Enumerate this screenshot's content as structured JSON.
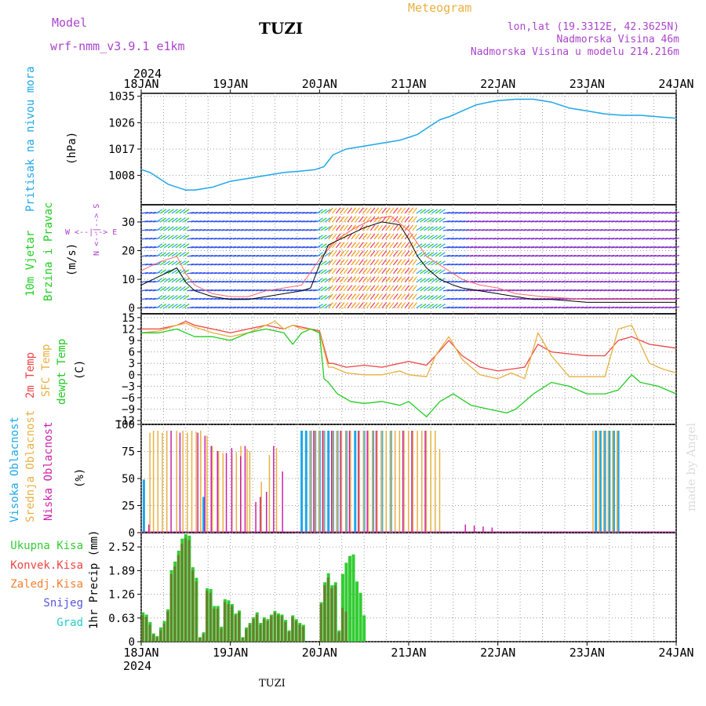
{
  "header": {
    "model_label": "Model",
    "model_name": "wrf-nmm_v3.9.1 e1km",
    "station": "TUZI",
    "product": "Meteogram",
    "lonlat": "lon,lat (19.3312E, 42.3625N)",
    "altitude": "Nadmorska Visina 46m",
    "model_altitude": "Nadmorska Visina u modelu 214.216m",
    "footer_station": "TUZI",
    "watermark": "made by Angel",
    "year_top": "2024",
    "year_bottom": "2024"
  },
  "colors": {
    "pressure": "#1ea7e8",
    "t2m": "#ee4444",
    "tsfc": "#e8b040",
    "dewpt": "#22cc22",
    "cloud_high": "#1ea7e8",
    "cloud_mid": "#e8b040",
    "cloud_low": "#cc22aa",
    "precip_total": "#33cc33",
    "precip_conv": "#cc4444",
    "snow": "#5555dd",
    "hail": "#22cccc",
    "wind_line": "#000000",
    "gust": "#ff6666"
  },
  "chart_data": [
    {
      "type": "line",
      "id": "pressure",
      "x_ticks": [
        "18JAN",
        "19JAN",
        "20JAN",
        "21JAN",
        "22JAN",
        "23JAN",
        "24JAN"
      ],
      "ylabel_lines": [
        "Pritisak na nivou mora",
        "(hPa)"
      ],
      "yticks": [
        "1035",
        "1026",
        "1017",
        "1008"
      ],
      "ylim": [
        998,
        1036
      ],
      "series": [
        {
          "name": "Pritisak na nivou mora",
          "x": [
            0,
            0.1,
            0.3,
            0.5,
            0.6,
            0.8,
            1.0,
            1.2,
            1.4,
            1.6,
            1.8,
            1.95,
            2.05,
            2.15,
            2.3,
            2.5,
            2.7,
            2.9,
            3.0,
            3.1,
            3.2,
            3.35,
            3.45,
            3.6,
            3.75,
            3.9,
            4.0,
            4.2,
            4.4,
            4.6,
            4.8,
            5.0,
            5.2,
            5.4,
            5.6,
            5.8,
            6.0
          ],
          "values": [
            1010,
            1009,
            1005,
            1003,
            1003,
            1004,
            1006,
            1007,
            1008,
            1009,
            1009.5,
            1010,
            1011,
            1015,
            1017,
            1018,
            1019,
            1020,
            1021,
            1022,
            1024,
            1027,
            1028,
            1030,
            1032,
            1033,
            1033.5,
            1034,
            1034,
            1033,
            1031,
            1030,
            1029,
            1028.5,
            1028.5,
            1028,
            1027.5
          ]
        }
      ]
    },
    {
      "type": "line",
      "id": "wind",
      "ylabel_lines": [
        "10m Vjetar",
        "Brzina i Pravac",
        "(m/s)"
      ],
      "compass": "W <--|--> E",
      "compass_ns": "N <--|--> S",
      "yticks": [
        "30",
        "20",
        "10",
        "0"
      ],
      "ylim": [
        -2,
        36
      ],
      "series": [
        {
          "name": "wind_speed",
          "x": [
            0,
            0.2,
            0.4,
            0.5,
            0.6,
            0.8,
            1.0,
            1.2,
            1.4,
            1.6,
            1.8,
            1.9,
            2.0,
            2.1,
            2.3,
            2.5,
            2.7,
            2.9,
            3.0,
            3.1,
            3.2,
            3.35,
            3.5,
            3.6,
            3.8,
            4.0,
            4.2,
            4.4,
            4.6,
            4.8,
            5.0,
            5.2,
            5.4,
            5.6,
            5.8,
            6.0
          ],
          "values": [
            8,
            11,
            14,
            9,
            6,
            4,
            3,
            3,
            4,
            5,
            6,
            7,
            15,
            22,
            25,
            28,
            30,
            29,
            24,
            18,
            14,
            10,
            8,
            7,
            6,
            5,
            4,
            3,
            3,
            2.5,
            2,
            2,
            2,
            2,
            2,
            2
          ]
        },
        {
          "name": "gust",
          "x": [
            0,
            0.2,
            0.4,
            0.5,
            0.6,
            0.8,
            1.0,
            1.2,
            1.4,
            1.6,
            1.8,
            2.0,
            2.2,
            2.4,
            2.6,
            2.8,
            3.0,
            3.2,
            3.4,
            3.6,
            3.8,
            4.0,
            4.2,
            4.5,
            5.0,
            5.5,
            6.0
          ],
          "values": [
            13,
            16,
            18,
            12,
            8,
            5,
            4,
            4,
            6,
            7,
            8,
            17,
            24,
            28,
            31,
            32,
            27,
            18,
            14,
            10,
            8,
            7,
            5,
            4,
            3,
            3,
            3
          ]
        }
      ]
    },
    {
      "type": "line",
      "id": "temperature",
      "ylabel_lines": [
        "2m Temp",
        "SFC Temp",
        "dewpt Temp",
        "(C)"
      ],
      "yticks": [
        "15",
        "12",
        "9",
        "6",
        "3",
        "0",
        "−3",
        "−6",
        "−9",
        "−12"
      ],
      "ylim": [
        -13,
        16
      ],
      "series": [
        {
          "name": "2m Temp",
          "x": [
            0,
            0.2,
            0.4,
            0.5,
            0.6,
            0.8,
            1.0,
            1.2,
            1.4,
            1.6,
            1.7,
            1.8,
            1.9,
            2.0,
            2.1,
            2.15,
            2.3,
            2.5,
            2.7,
            2.9,
            3.0,
            3.2,
            3.3,
            3.45,
            3.6,
            3.8,
            4.0,
            4.15,
            4.3,
            4.45,
            4.6,
            4.8,
            5.0,
            5.2,
            5.35,
            5.5,
            5.7,
            5.85,
            6.0
          ],
          "values": [
            12,
            12,
            13,
            14,
            13,
            12,
            11,
            12,
            13,
            12,
            13,
            12.5,
            12,
            11.5,
            3,
            3,
            2,
            2.5,
            2,
            3,
            3.5,
            2.5,
            5,
            9,
            5,
            2,
            1,
            1.5,
            2,
            8,
            6,
            5.5,
            5,
            5,
            9,
            10,
            8,
            7.5,
            7
          ]
        },
        {
          "name": "SFC Temp",
          "x": [
            0,
            0.2,
            0.4,
            0.5,
            0.6,
            0.8,
            1.0,
            1.2,
            1.4,
            1.5,
            1.6,
            1.7,
            1.8,
            1.9,
            2.0,
            2.1,
            2.15,
            2.3,
            2.5,
            2.7,
            2.9,
            3.0,
            3.2,
            3.3,
            3.45,
            3.6,
            3.8,
            4.0,
            4.15,
            4.3,
            4.45,
            4.6,
            4.8,
            5.0,
            5.2,
            5.35,
            5.5,
            5.7,
            5.85,
            6.0
          ],
          "values": [
            11,
            11.5,
            13,
            13.5,
            12.5,
            11,
            10,
            11,
            13,
            14,
            12,
            13,
            12,
            12,
            11,
            2,
            2,
            0.5,
            0,
            0,
            1,
            0,
            -0.5,
            5,
            10,
            4,
            0,
            -1,
            0.5,
            -1,
            11,
            5,
            -0.5,
            -0.5,
            -0.5,
            12,
            13,
            3,
            1.5,
            0.5
          ]
        },
        {
          "name": "dewpt Temp",
          "x": [
            0,
            0.2,
            0.4,
            0.5,
            0.6,
            0.8,
            1.0,
            1.2,
            1.4,
            1.6,
            1.7,
            1.8,
            1.9,
            2.0,
            2.05,
            2.1,
            2.2,
            2.35,
            2.5,
            2.7,
            2.9,
            3.0,
            3.1,
            3.2,
            3.35,
            3.5,
            3.7,
            3.9,
            4.0,
            4.1,
            4.2,
            4.4,
            4.6,
            4.8,
            5.0,
            5.2,
            5.35,
            5.5,
            5.6,
            5.8,
            6.0
          ],
          "values": [
            11,
            11,
            12,
            11,
            10,
            10,
            9,
            11,
            12,
            11,
            8,
            11,
            12,
            11,
            -1,
            -2,
            -5,
            -7,
            -7.5,
            -7,
            -8,
            -7,
            -9,
            -11,
            -7,
            -5,
            -8,
            -9,
            -9.5,
            -10,
            -9,
            -5,
            -2,
            -3,
            -5,
            -5,
            -4,
            0,
            -2,
            -3,
            -5
          ]
        }
      ]
    },
    {
      "type": "bar",
      "id": "clouds",
      "ylabel_lines": [
        "Visoka Oblacnost",
        "Srednja Oblacnost",
        "Niska Oblacnost",
        "(%)"
      ],
      "yticks": [
        "100",
        "75",
        "50",
        "25",
        "0"
      ],
      "ylim": [
        0,
        100
      ],
      "series": [
        {
          "name": "Visoka Oblacnost",
          "x": [
            0.03,
            0.7,
            1.03,
            1.38,
            1.8,
            1.85,
            1.9,
            1.95,
            2.0,
            2.05,
            2.1,
            2.15,
            2.2,
            2.3,
            2.4,
            2.5,
            2.6,
            2.7,
            2.8,
            5.1,
            5.15,
            5.2,
            5.25,
            5.3,
            5.35
          ],
          "values": [
            52,
            35,
            0,
            0,
            100,
            100,
            100,
            100,
            100,
            100,
            100,
            100,
            100,
            100,
            100,
            100,
            100,
            100,
            100,
            100,
            100,
            100,
            100,
            100,
            100
          ]
        },
        {
          "name": "Srednja Oblacnost",
          "x": [
            0.08,
            0.12,
            0.17,
            0.22,
            0.27,
            0.38,
            0.45,
            0.5,
            0.55,
            0.6,
            0.65,
            0.72,
            0.78,
            0.85,
            0.9,
            1.0,
            1.05,
            1.1,
            1.17,
            1.2,
            1.33,
            1.42,
            1.5,
            1.88,
            1.93,
            1.98,
            2.03,
            2.13,
            2.18,
            2.23,
            2.28,
            2.33,
            2.43,
            2.48,
            2.53,
            2.58,
            2.63,
            2.68,
            2.73,
            2.78,
            2.83,
            2.88,
            2.93,
            2.98,
            3.03,
            3.08,
            3.13,
            3.18,
            3.23,
            3.28,
            3.33,
            5.05,
            5.12,
            5.17,
            5.22,
            5.27,
            5.32
          ],
          "values": [
            98,
            100,
            100,
            98,
            100,
            100,
            100,
            98,
            100,
            99,
            100,
            95,
            85,
            80,
            78,
            77,
            79,
            85,
            82,
            80,
            50,
            76,
            83,
            100,
            100,
            100,
            100,
            100,
            100,
            100,
            100,
            100,
            100,
            100,
            100,
            100,
            100,
            100,
            100,
            100,
            100,
            100,
            100,
            100,
            100,
            100,
            100,
            100,
            100,
            100,
            82,
            100,
            100,
            100,
            100,
            100,
            100
          ]
        },
        {
          "name": "Niska Oblacnost",
          "x": [
            0.05,
            0.3,
            0.4,
            0.6,
            0.68,
            0.75,
            0.82,
            0.92,
            0.98,
            1.08,
            1.13,
            1.25,
            1.3,
            1.37,
            1.45,
            1.55,
            1.9,
            2.0,
            2.1,
            2.2,
            2.3,
            2.4,
            2.5,
            2.6,
            2.9,
            3.0,
            3.15,
            3.6,
            3.7,
            3.8,
            3.9
          ],
          "values": [
            8,
            100,
            98,
            98,
            95,
            85,
            80,
            78,
            83,
            75,
            85,
            30,
            35,
            40,
            85,
            60,
            100,
            100,
            100,
            100,
            100,
            100,
            100,
            100,
            100,
            100,
            100,
            8,
            7,
            6,
            5
          ]
        }
      ]
    },
    {
      "type": "bar",
      "id": "precip",
      "ylabel_lines": [
        "1hr Precip (mm)"
      ],
      "legend": [
        "Ukupna Kisa",
        "Konvek.Kisa",
        "Zaledj.Kisa",
        "Snijeg",
        "Grad"
      ],
      "yticks": [
        "2.52",
        "1.89",
        "1.26",
        "0.63",
        "0"
      ],
      "ylim": [
        0,
        2.9
      ],
      "x_ticks": [
        "18JAN",
        "19JAN",
        "20JAN",
        "21JAN",
        "22JAN",
        "23JAN",
        "24JAN"
      ],
      "series": [
        {
          "name": "Ukupna Kisa",
          "x": [
            0.02,
            0.06,
            0.1,
            0.14,
            0.18,
            0.22,
            0.26,
            0.3,
            0.34,
            0.38,
            0.42,
            0.46,
            0.5,
            0.54,
            0.58,
            0.62,
            0.66,
            0.7,
            0.74,
            0.78,
            0.82,
            0.86,
            0.9,
            0.94,
            0.98,
            1.02,
            1.06,
            1.1,
            1.14,
            1.18,
            1.22,
            1.26,
            1.3,
            1.34,
            1.38,
            1.42,
            1.46,
            1.5,
            1.54,
            1.58,
            1.62,
            1.66,
            1.7,
            1.74,
            1.78,
            1.82,
            1.86,
            1.9,
            1.94,
            1.98,
            2.02,
            2.06,
            2.1,
            2.14,
            2.18,
            2.22,
            2.26,
            2.3,
            2.34,
            2.38,
            2.42,
            2.46,
            2.5
          ],
          "values": [
            0.78,
            0.72,
            0.52,
            0.22,
            0.15,
            0.38,
            0.55,
            0.86,
            1.9,
            2.13,
            2.42,
            2.74,
            2.86,
            2.82,
            1.98,
            1.7,
            0.12,
            0.25,
            1.42,
            1.4,
            0.95,
            0.95,
            0.4,
            1.13,
            1.1,
            1.0,
            0.75,
            0.83,
            0.12,
            0.38,
            0.5,
            0.65,
            0.78,
            0.5,
            0.65,
            0.6,
            0.72,
            0.82,
            0.75,
            0.72,
            0.58,
            0.3,
            0.7,
            0.6,
            0.5,
            0.45,
            0.0,
            0.0,
            0.0,
            0.0,
            1.05,
            1.58,
            1.82,
            1.5,
            1.58,
            0.3,
            1.8,
            2.1,
            2.28,
            2.32,
            1.6,
            1.3,
            0.7
          ]
        },
        {
          "name": "Konvek.Kisa",
          "x": [
            0.02,
            0.06,
            0.1,
            0.14,
            0.18,
            0.22,
            0.26,
            0.3,
            0.34,
            0.38,
            0.42,
            0.46,
            0.5,
            0.54,
            0.58,
            0.62,
            0.66,
            0.7,
            0.74,
            0.78,
            0.82,
            0.86,
            0.9,
            0.94,
            0.98,
            1.02,
            1.06,
            1.1,
            1.14,
            1.18,
            1.22,
            1.26,
            1.3,
            1.34,
            1.38,
            1.42,
            1.46,
            1.5,
            1.54,
            1.58,
            1.62,
            1.66,
            1.7,
            1.74,
            1.78,
            1.82,
            2.02,
            2.06,
            2.1,
            2.14,
            2.18,
            2.22,
            2.26,
            2.3
          ],
          "values": [
            0.7,
            0.65,
            0.45,
            0.18,
            0.12,
            0.3,
            0.48,
            0.8,
            1.8,
            2.0,
            2.3,
            2.6,
            2.75,
            2.7,
            1.9,
            1.6,
            0.1,
            0.2,
            1.35,
            1.3,
            0.88,
            0.88,
            0.35,
            1.05,
            1.0,
            0.95,
            0.7,
            0.78,
            0.1,
            0.33,
            0.45,
            0.6,
            0.72,
            0.45,
            0.6,
            0.55,
            0.68,
            0.78,
            0.7,
            0.68,
            0.52,
            0.26,
            0.66,
            0.55,
            0.45,
            0.4,
            1.0,
            1.5,
            1.7,
            1.42,
            1.5,
            0.25,
            0.9,
            0.8
          ]
        }
      ]
    }
  ]
}
